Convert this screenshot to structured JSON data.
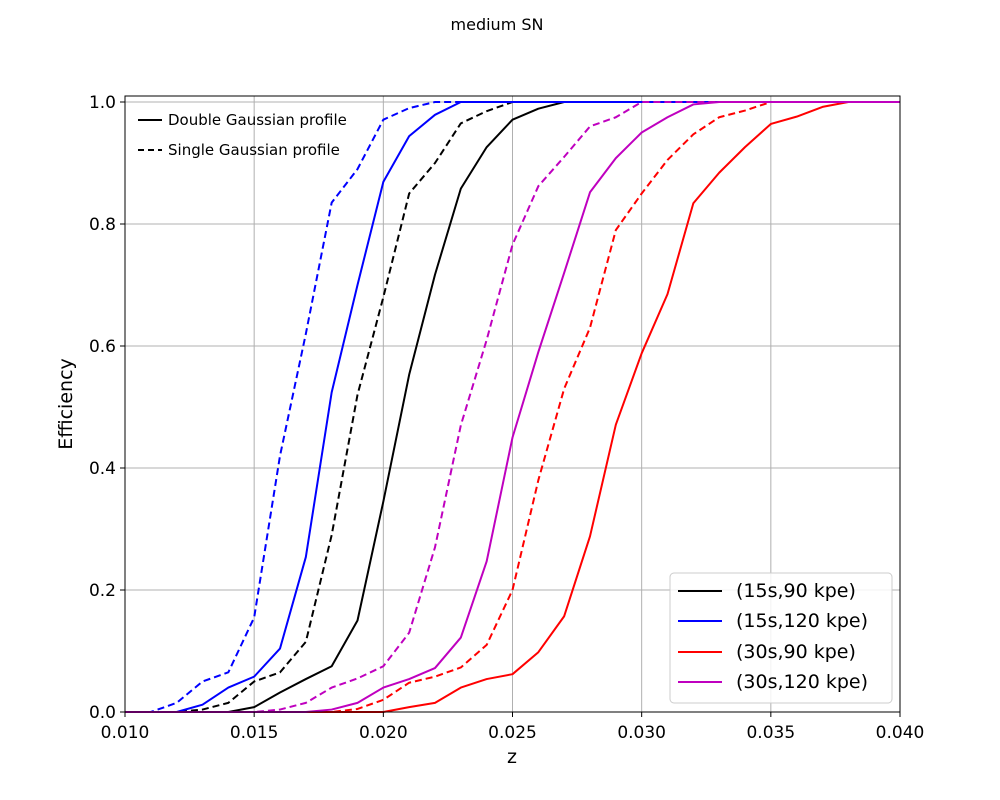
{
  "chart_data": {
    "type": "line",
    "title": "medium SN",
    "xlabel": "z",
    "ylabel": "Efficiency",
    "xlim": [
      0.01,
      0.04
    ],
    "ylim": [
      0.0,
      1.0
    ],
    "grid": true,
    "xticks": [
      "0.010",
      "0.015",
      "0.020",
      "0.025",
      "0.030",
      "0.035",
      "0.040"
    ],
    "yticks": [
      "0.0",
      "0.2",
      "0.4",
      "0.6",
      "0.8",
      "1.0"
    ],
    "legend": {
      "placement": "lower-right",
      "entries": [
        {
          "label": "(15s,90 kpe)",
          "color": "#000000"
        },
        {
          "label": "(15s,120 kpe)",
          "color": "#0000ff"
        },
        {
          "label": "(30s,90 kpe)",
          "color": "#ff0000"
        },
        {
          "label": "(30s,120 kpe)",
          "color": "#bf00bf"
        }
      ]
    },
    "style_legend": {
      "placement": "upper-left",
      "entries": [
        {
          "label": "Double Gaussian profile",
          "dash": "solid"
        },
        {
          "label": "Single Gaussian profile",
          "dash": "dashed"
        }
      ]
    },
    "x": [
      0.01,
      0.011,
      0.012,
      0.013,
      0.014,
      0.015,
      0.016,
      0.017,
      0.018,
      0.019,
      0.02,
      0.021,
      0.022,
      0.023,
      0.024,
      0.025,
      0.026,
      0.027,
      0.028,
      0.029,
      0.03,
      0.031,
      0.032,
      0.033,
      0.034,
      0.035,
      0.036,
      0.037,
      0.038,
      0.039,
      0.04
    ],
    "series": [
      {
        "config": "(15s,90 kpe)",
        "profile": "Double Gaussian profile",
        "color": "#000000",
        "dash": "solid",
        "values": [
          0,
          0,
          0,
          0,
          0,
          0.008,
          0.032,
          0.054,
          0.075,
          0.15,
          0.345,
          0.553,
          0.717,
          0.858,
          0.926,
          0.971,
          0.989,
          1.0,
          1.0,
          1.0,
          1.0,
          1.0,
          1.0,
          1.0,
          1.0,
          1.0,
          1.0,
          1.0,
          1.0,
          1.0,
          1.0
        ]
      },
      {
        "config": "(15s,90 kpe)",
        "profile": "Single Gaussian profile",
        "color": "#000000",
        "dash": "dashed",
        "values": [
          0,
          0,
          0,
          0.004,
          0.015,
          0.05,
          0.065,
          0.115,
          0.29,
          0.52,
          0.68,
          0.85,
          0.9,
          0.965,
          0.985,
          1.0,
          1.0,
          1.0,
          1.0,
          1.0,
          1.0,
          1.0,
          1.0,
          1.0,
          1.0,
          1.0,
          1.0,
          1.0,
          1.0,
          1.0,
          1.0
        ]
      },
      {
        "config": "(15s,120 kpe)",
        "profile": "Double Gaussian profile",
        "color": "#0000ff",
        "dash": "solid",
        "values": [
          0,
          0,
          0,
          0.012,
          0.04,
          0.058,
          0.104,
          0.254,
          0.524,
          0.7,
          0.869,
          0.944,
          0.979,
          1.0,
          1.0,
          1.0,
          1.0,
          1.0,
          1.0,
          1.0,
          1.0,
          1.0,
          1.0,
          1.0,
          1.0,
          1.0,
          1.0,
          1.0,
          1.0,
          1.0,
          1.0
        ]
      },
      {
        "config": "(15s,120 kpe)",
        "profile": "Single Gaussian profile",
        "color": "#0000ff",
        "dash": "dashed",
        "values": [
          0,
          0,
          0.015,
          0.05,
          0.065,
          0.155,
          0.42,
          0.62,
          0.835,
          0.89,
          0.971,
          0.99,
          1.0,
          1.0,
          1.0,
          1.0,
          1.0,
          1.0,
          1.0,
          1.0,
          1.0,
          1.0,
          1.0,
          1.0,
          1.0,
          1.0,
          1.0,
          1.0,
          1.0,
          1.0,
          1.0
        ]
      },
      {
        "config": "(30s,90 kpe)",
        "profile": "Double Gaussian profile",
        "color": "#ff0000",
        "dash": "solid",
        "values": [
          0,
          0,
          0,
          0,
          0,
          0,
          0,
          0,
          0,
          0,
          0,
          0.008,
          0.015,
          0.04,
          0.054,
          0.062,
          0.098,
          0.157,
          0.288,
          0.471,
          0.588,
          0.685,
          0.834,
          0.884,
          0.926,
          0.964,
          0.976,
          0.992,
          1.0,
          1.0,
          1.0
        ]
      },
      {
        "config": "(30s,90 kpe)",
        "profile": "Single Gaussian profile",
        "color": "#ff0000",
        "dash": "dashed",
        "values": [
          0,
          0,
          0,
          0,
          0,
          0,
          0,
          0,
          0,
          0.005,
          0.02,
          0.048,
          0.058,
          0.073,
          0.11,
          0.2,
          0.38,
          0.53,
          0.63,
          0.79,
          0.85,
          0.905,
          0.947,
          0.975,
          0.986,
          1.0,
          1.0,
          1.0,
          1.0,
          1.0,
          1.0
        ]
      },
      {
        "config": "(30s,120 kpe)",
        "profile": "Double Gaussian profile",
        "color": "#bf00bf",
        "dash": "solid",
        "values": [
          0,
          0,
          0,
          0,
          0,
          0,
          0,
          0,
          0.004,
          0.015,
          0.04,
          0.054,
          0.072,
          0.122,
          0.247,
          0.45,
          0.59,
          0.72,
          0.852,
          0.908,
          0.95,
          0.975,
          0.996,
          1.0,
          1.0,
          1.0,
          1.0,
          1.0,
          1.0,
          1.0,
          1.0
        ]
      },
      {
        "config": "(30s,120 kpe)",
        "profile": "Single Gaussian profile",
        "color": "#bf00bf",
        "dash": "dashed",
        "values": [
          0,
          0,
          0,
          0,
          0,
          0,
          0.004,
          0.015,
          0.04,
          0.055,
          0.075,
          0.13,
          0.27,
          0.47,
          0.61,
          0.766,
          0.862,
          0.91,
          0.96,
          0.975,
          1.0,
          1.0,
          1.0,
          1.0,
          1.0,
          1.0,
          1.0,
          1.0,
          1.0,
          1.0,
          1.0
        ]
      }
    ]
  }
}
